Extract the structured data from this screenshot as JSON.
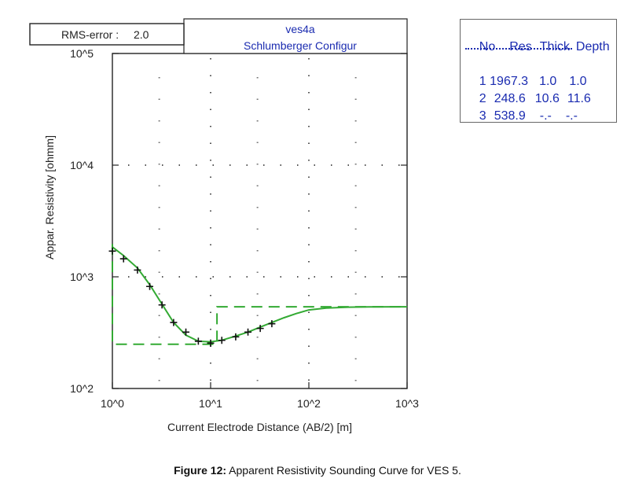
{
  "chart_data": {
    "type": "line",
    "title": "ves4a",
    "subtitle": "Schlumberger Configur",
    "rms_label": "RMS-error :",
    "rms_value": "2.0",
    "xlabel": "Current Electrode Distance (AB/2) [m]",
    "ylabel": "Appar. Resistivity [ohmm]",
    "xscale": "log",
    "yscale": "log",
    "xlim": [
      1,
      1000
    ],
    "ylim": [
      100,
      100000
    ],
    "x_ticks": [
      "10^0",
      "10^1",
      "10^2",
      "10^3"
    ],
    "y_ticks": [
      "10^2",
      "10^3",
      "10^4",
      "10^5"
    ],
    "grid": "dotted",
    "color": "#33aa33",
    "measured": {
      "x": [
        1.0,
        1.3,
        1.8,
        2.4,
        3.2,
        4.2,
        5.6,
        7.5,
        10.0,
        13.0,
        18.0,
        24.0,
        32.0,
        42.0
      ],
      "y": [
        1700,
        1450,
        1150,
        820,
        560,
        390,
        320,
        265,
        255,
        270,
        290,
        320,
        345,
        380
      ]
    },
    "calculated": {
      "x": [
        1.0,
        1.3,
        1.8,
        2.4,
        3.2,
        4.2,
        5.6,
        7.5,
        10.0,
        13.0,
        18.0,
        24.0,
        32.0,
        42.0,
        56.0,
        75.0,
        100.0,
        150.0,
        250.0,
        400.0,
        1000.0
      ],
      "y": [
        1850,
        1550,
        1200,
        850,
        570,
        390,
        300,
        265,
        262,
        270,
        295,
        320,
        355,
        390,
        430,
        470,
        505,
        525,
        535,
        538,
        539
      ]
    },
    "model": {
      "x": [
        1.0,
        1.0,
        11.6,
        11.6,
        1000.0
      ],
      "y": [
        1967.3,
        248.6,
        248.6,
        538.9,
        538.9
      ]
    }
  },
  "layer_table": {
    "headers": [
      "No",
      "Res",
      "Thick",
      "Depth"
    ],
    "rows": [
      [
        "1",
        "1967.3",
        "1.0",
        "1.0"
      ],
      [
        "2",
        "248.6",
        "10.6",
        "11.6"
      ],
      [
        "3",
        "538.9",
        "-.-",
        "-.-"
      ]
    ]
  },
  "caption": {
    "label": "Figure 12:",
    "text": "Apparent Resistivity Sounding Curve for VES 5."
  }
}
